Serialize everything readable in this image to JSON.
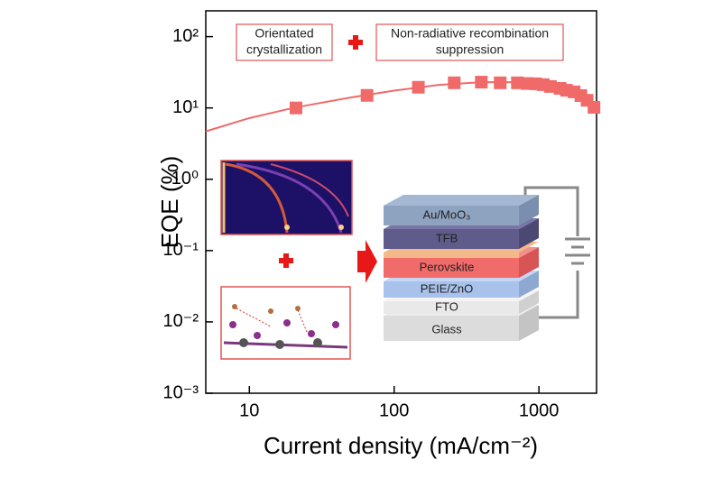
{
  "chart_data": {
    "type": "scatter",
    "xlabel": "Current density (mA/cm⁻²)",
    "ylabel": "EQE (%)",
    "xscale": "log",
    "yscale": "log",
    "xlim": [
      5,
      2500
    ],
    "ylim": [
      0.001,
      230
    ],
    "xticks": [
      10,
      100,
      1000
    ],
    "yticks": [
      {
        "value": 0.001,
        "label": "10⁻³"
      },
      {
        "value": 0.01,
        "label": "10⁻²"
      },
      {
        "value": 0.1,
        "label": "10⁻¹"
      },
      {
        "value": 1,
        "label": "10⁰"
      },
      {
        "value": 10,
        "label": "10¹"
      },
      {
        "value": 100,
        "label": "10²"
      }
    ],
    "series": [
      {
        "color": "#f06a6a",
        "marker": "square",
        "x": [
          21,
          65,
          147,
          260,
          400,
          540,
          710,
          830,
          950,
          1070,
          1200,
          1400,
          1550,
          1750,
          1950,
          2150,
          2400
        ],
        "values": [
          10,
          15,
          19.5,
          22.5,
          23,
          22.5,
          22.5,
          22,
          21.8,
          21.2,
          20,
          18.8,
          17.7,
          16.8,
          14.9,
          12.8,
          10.2
        ]
      },
      {
        "color": "#f06a6a",
        "marker": "line",
        "x": [
          5,
          10,
          20,
          50,
          100,
          200,
          400,
          700,
          1000,
          1500,
          2000,
          2500
        ],
        "values": [
          4.7,
          7.2,
          10,
          14,
          17.5,
          21,
          23,
          23,
          22,
          19,
          15,
          10.5
        ]
      }
    ],
    "annotations": [
      {
        "lines": [
          "Orientated",
          "crystallization"
        ]
      },
      {
        "lines": [
          "Non-radiative recombination",
          "suppression"
        ]
      }
    ],
    "device_layers": [
      "Au/MoO₃",
      "TFB",
      "Perovskite",
      "PEIE/ZnO",
      "FTO",
      "Glass"
    ]
  }
}
